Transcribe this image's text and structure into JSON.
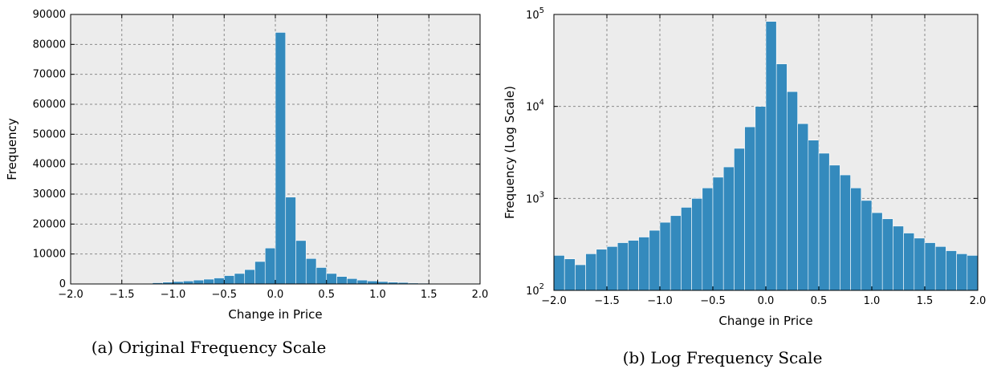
{
  "chart_data": [
    {
      "type": "bar",
      "xlabel": "Change in Price",
      "ylabel": "Frequency",
      "caption": "(a) Original Frequency Scale",
      "xlim": [
        -2.0,
        2.0
      ],
      "ylim": [
        0,
        90000
      ],
      "yscale": "linear",
      "grid": true,
      "bin_width": 0.1,
      "xticks": [
        -2.0,
        -1.5,
        -1.0,
        -0.5,
        0.0,
        0.5,
        1.0,
        1.5,
        2.0
      ],
      "xtick_labels": [
        "−2.0",
        "−1.5",
        "−1.0",
        "−0.5",
        "0.0",
        "0.5",
        "1.0",
        "1.5",
        "2.0"
      ],
      "yticks": [
        0,
        10000,
        20000,
        30000,
        40000,
        50000,
        60000,
        70000,
        80000,
        90000
      ],
      "ytick_labels": [
        "0",
        "10000",
        "20000",
        "30000",
        "40000",
        "50000",
        "60000",
        "70000",
        "80000",
        "90000"
      ],
      "bins": [
        -2.0,
        -1.9,
        -1.8,
        -1.7,
        -1.6,
        -1.5,
        -1.4,
        -1.3,
        -1.2,
        -1.1,
        -1.0,
        -0.9,
        -0.8,
        -0.7,
        -0.6,
        -0.5,
        -0.4,
        -0.3,
        -0.2,
        -0.1,
        0.0,
        0.1,
        0.2,
        0.3,
        0.4,
        0.5,
        0.6,
        0.7,
        0.8,
        0.9,
        1.0,
        1.1,
        1.2,
        1.3,
        1.4,
        1.5,
        1.6,
        1.7,
        1.8,
        1.9
      ],
      "values": [
        120,
        130,
        140,
        150,
        170,
        180,
        200,
        220,
        400,
        600,
        800,
        1000,
        1300,
        1600,
        2000,
        2800,
        3500,
        4800,
        7500,
        12000,
        84000,
        29000,
        14500,
        8500,
        5500,
        3500,
        2500,
        1800,
        1300,
        1000,
        800,
        600,
        500,
        300,
        250,
        220,
        200,
        180,
        160,
        150
      ]
    },
    {
      "type": "bar",
      "xlabel": "Change in Price",
      "ylabel": "Frequency (Log Scale)",
      "caption": "(b) Log Frequency Scale",
      "xlim": [
        -2.0,
        2.0
      ],
      "ylim": [
        100,
        100000
      ],
      "yscale": "log",
      "grid": true,
      "bin_width": 0.1,
      "xticks": [
        -2.0,
        -1.5,
        -1.0,
        -0.5,
        0.0,
        0.5,
        1.0,
        1.5,
        2.0
      ],
      "xtick_labels": [
        "−2.0",
        "−1.5",
        "−1.0",
        "−0.5",
        "0.0",
        "0.5",
        "1.0",
        "1.5",
        "2.0"
      ],
      "yticks": [
        100,
        1000,
        10000,
        100000
      ],
      "ytick_bases": [
        "10",
        "10",
        "10",
        "10"
      ],
      "ytick_exps": [
        "2",
        "3",
        "4",
        "5"
      ],
      "bins": [
        -2.0,
        -1.9,
        -1.8,
        -1.7,
        -1.6,
        -1.5,
        -1.4,
        -1.3,
        -1.2,
        -1.1,
        -1.0,
        -0.9,
        -0.8,
        -0.7,
        -0.6,
        -0.5,
        -0.4,
        -0.3,
        -0.2,
        -0.1,
        0.0,
        0.1,
        0.2,
        0.3,
        0.4,
        0.5,
        0.6,
        0.7,
        0.8,
        0.9,
        1.0,
        1.1,
        1.2,
        1.3,
        1.4,
        1.5,
        1.6,
        1.7,
        1.8,
        1.9
      ],
      "values": [
        240,
        220,
        190,
        250,
        280,
        300,
        330,
        350,
        380,
        450,
        550,
        650,
        800,
        1000,
        1300,
        1700,
        2200,
        3500,
        6000,
        10000,
        84000,
        29000,
        14500,
        6500,
        4300,
        3100,
        2300,
        1800,
        1300,
        950,
        700,
        600,
        500,
        420,
        370,
        330,
        300,
        270,
        250,
        240
      ]
    }
  ]
}
